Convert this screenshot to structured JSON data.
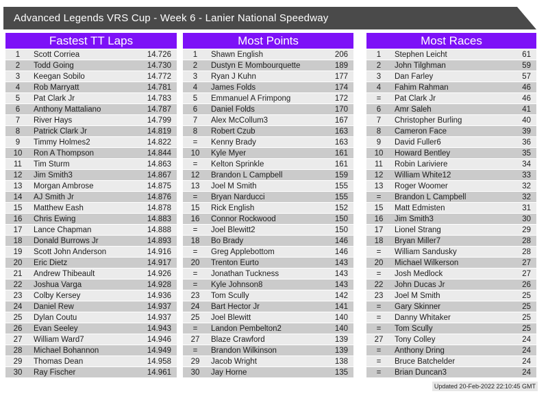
{
  "banner": {
    "title": "Advanced Legends VRS Cup - Week 6 - Lanier National Speedway"
  },
  "footer": {
    "updated": "Updated 20-Feb-2022 22:10:45 GMT"
  },
  "colors": {
    "banner_bg": "#4a4a4a",
    "board_header_bg": "#7d11f7",
    "row_odd_bg": "#ebebeb",
    "row_even_bg": "#cbcbcb",
    "footer_bg": "#e6e6e6",
    "text": "#1c1c1c"
  },
  "tables": [
    {
      "title": "Fastest TT Laps",
      "rows": [
        [
          "1",
          "Scott Corriea",
          "14.726"
        ],
        [
          "2",
          "Todd Going",
          "14.730"
        ],
        [
          "3",
          "Keegan Sobilo",
          "14.772"
        ],
        [
          "4",
          "Rob Marryatt",
          "14.781"
        ],
        [
          "5",
          "Pat Clark Jr",
          "14.783"
        ],
        [
          "6",
          "Anthony Mattaliano",
          "14.787"
        ],
        [
          "7",
          "River Hays",
          "14.799"
        ],
        [
          "8",
          "Patrick Clark Jr",
          "14.819"
        ],
        [
          "9",
          "Timmy Holmes2",
          "14.822"
        ],
        [
          "10",
          "Ron A Thompson",
          "14.844"
        ],
        [
          "11",
          "Tim Sturm",
          "14.863"
        ],
        [
          "12",
          "Jim Smith3",
          "14.867"
        ],
        [
          "13",
          "Morgan Ambrose",
          "14.875"
        ],
        [
          "14",
          "AJ Smith Jr",
          "14.876"
        ],
        [
          "15",
          "Matthew Eash",
          "14.878"
        ],
        [
          "16",
          "Chris Ewing",
          "14.883"
        ],
        [
          "17",
          "Lance Chapman",
          "14.888"
        ],
        [
          "18",
          "Donald Burrows Jr",
          "14.893"
        ],
        [
          "19",
          "Scott John Anderson",
          "14.916"
        ],
        [
          "20",
          "Eric Dietz",
          "14.917"
        ],
        [
          "21",
          "Andrew Thibeault",
          "14.926"
        ],
        [
          "22",
          "Joshua Varga",
          "14.928"
        ],
        [
          "23",
          "Colby Kersey",
          "14.936"
        ],
        [
          "24",
          "Daniel Rew",
          "14.937"
        ],
        [
          "25",
          "Dylan Coutu",
          "14.937"
        ],
        [
          "26",
          "Evan Seeley",
          "14.943"
        ],
        [
          "27",
          "William Ward7",
          "14.946"
        ],
        [
          "28",
          "Michael Bohannon",
          "14.949"
        ],
        [
          "29",
          "Thomas Dean",
          "14.958"
        ],
        [
          "30",
          "Ray Fischer",
          "14.961"
        ]
      ]
    },
    {
      "title": "Most Points",
      "rows": [
        [
          "1",
          "Shawn English",
          "206"
        ],
        [
          "2",
          "Dustyn E Mombourquette",
          "189"
        ],
        [
          "3",
          "Ryan J Kuhn",
          "177"
        ],
        [
          "4",
          "James Folds",
          "174"
        ],
        [
          "5",
          "Emmanuel A Frimpong",
          "172"
        ],
        [
          "6",
          "Daniel Folds",
          "170"
        ],
        [
          "7",
          "Alex McCollum3",
          "167"
        ],
        [
          "8",
          "Robert Czub",
          "163"
        ],
        [
          "=",
          "Kenny Brady",
          "163"
        ],
        [
          "10",
          "Kyle Myer",
          "161"
        ],
        [
          "=",
          "Kelton Sprinkle",
          "161"
        ],
        [
          "12",
          "Brandon L Campbell",
          "159"
        ],
        [
          "13",
          "Joel M Smith",
          "155"
        ],
        [
          "=",
          "Bryan Narducci",
          "155"
        ],
        [
          "15",
          "Rick English",
          "152"
        ],
        [
          "16",
          "Connor Rockwood",
          "150"
        ],
        [
          "=",
          "Joel Blewitt2",
          "150"
        ],
        [
          "18",
          "Bo Brady",
          "146"
        ],
        [
          "=",
          "Greg Applebottom",
          "146"
        ],
        [
          "20",
          "Trenton Eurto",
          "143"
        ],
        [
          "=",
          "Jonathan Tuckness",
          "143"
        ],
        [
          "=",
          "Kyle Johnson8",
          "143"
        ],
        [
          "23",
          "Tom Scully",
          "142"
        ],
        [
          "24",
          "Bart Hector Jr",
          "141"
        ],
        [
          "25",
          "Joel Blewitt",
          "140"
        ],
        [
          "=",
          "Landon Pembelton2",
          "140"
        ],
        [
          "27",
          "Blaze Crawford",
          "139"
        ],
        [
          "=",
          "Brandon Wilkinson",
          "139"
        ],
        [
          "29",
          "Jacob Wright",
          "138"
        ],
        [
          "30",
          "Jay Horne",
          "135"
        ]
      ]
    },
    {
      "title": "Most Races",
      "rows": [
        [
          "1",
          "Stephen Leicht",
          "61"
        ],
        [
          "2",
          "John Tilghman",
          "59"
        ],
        [
          "3",
          "Dan Farley",
          "57"
        ],
        [
          "4",
          "Fahim Rahman",
          "46"
        ],
        [
          "=",
          "Pat Clark Jr",
          "46"
        ],
        [
          "6",
          "Amr Saleh",
          "41"
        ],
        [
          "7",
          "Christopher Burling",
          "40"
        ],
        [
          "8",
          "Cameron Face",
          "39"
        ],
        [
          "9",
          "David Fuller6",
          "36"
        ],
        [
          "10",
          "Howard Bentley",
          "35"
        ],
        [
          "11",
          "Robin Lariviere",
          "34"
        ],
        [
          "12",
          "William White12",
          "33"
        ],
        [
          "13",
          "Roger Woomer",
          "32"
        ],
        [
          "=",
          "Brandon L Campbell",
          "32"
        ],
        [
          "15",
          "Matt Edmisten",
          "31"
        ],
        [
          "16",
          "Jim Smith3",
          "30"
        ],
        [
          "17",
          "Lionel Strang",
          "29"
        ],
        [
          "18",
          "Bryan Miller7",
          "28"
        ],
        [
          "=",
          "William Sandusky",
          "28"
        ],
        [
          "20",
          "Michael Wilkerson",
          "27"
        ],
        [
          "=",
          "Josh Medlock",
          "27"
        ],
        [
          "22",
          "John Ducas Jr",
          "26"
        ],
        [
          "23",
          "Joel M Smith",
          "25"
        ],
        [
          "=",
          "Gary Skinner",
          "25"
        ],
        [
          "=",
          "Danny Whitaker",
          "25"
        ],
        [
          "=",
          "Tom Scully",
          "25"
        ],
        [
          "27",
          "Tony Colley",
          "24"
        ],
        [
          "=",
          "Anthony Dring",
          "24"
        ],
        [
          "=",
          "Bruce Batchelder",
          "24"
        ],
        [
          "=",
          "Brian Duncan3",
          "24"
        ]
      ]
    }
  ]
}
